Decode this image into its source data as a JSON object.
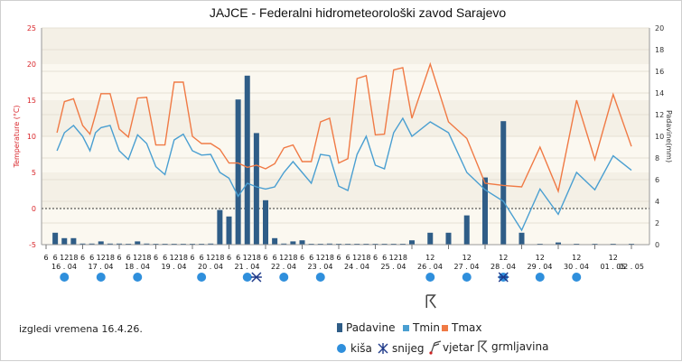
{
  "chart_data": {
    "type": "bar+line",
    "title": "JAJCE - Federalni hidrometeorološki zavod Sarajevo",
    "left_axis": {
      "label": "Temperature (°C)",
      "min": -5,
      "max": 25,
      "ticks": [
        -5,
        0,
        5,
        10,
        15,
        20,
        25
      ],
      "color": "#d9262b"
    },
    "right_axis": {
      "label": "Padavine(mm)",
      "min": 0,
      "max": 20,
      "ticks": [
        0,
        2,
        4,
        6,
        8,
        10,
        12,
        14,
        16,
        18,
        20
      ]
    },
    "days": [
      "16 . 04",
      "17 . 04",
      "18 . 04",
      "19 . 04",
      "20 . 04",
      "21 . 04",
      "22 . 04",
      "23 . 04",
      "24 . 04",
      "25 . 04",
      "26 . 04",
      "27 . 04",
      "28 . 04",
      "29 . 04",
      "30 . 04",
      "01 . 05",
      "02 . 05"
    ],
    "hour_ticks": [
      "6",
      "12",
      "18"
    ],
    "tmax": {
      "name": "Tmax",
      "color": "#f07a45",
      "points": [
        [
          0.3,
          10.5
        ],
        [
          0.5,
          14.8
        ],
        [
          0.75,
          15.2
        ],
        [
          1.0,
          11.5
        ],
        [
          1.2,
          10.3
        ],
        [
          1.35,
          13
        ],
        [
          1.5,
          15.9
        ],
        [
          1.75,
          15.9
        ],
        [
          2.0,
          11
        ],
        [
          2.25,
          9.9
        ],
        [
          2.5,
          15.3
        ],
        [
          2.75,
          15.4
        ],
        [
          3.0,
          8.8
        ],
        [
          3.25,
          8.8
        ],
        [
          3.5,
          17.5
        ],
        [
          3.75,
          17.5
        ],
        [
          4.0,
          10
        ],
        [
          4.25,
          9
        ],
        [
          4.5,
          9
        ],
        [
          4.75,
          8.2
        ],
        [
          5.0,
          6.3
        ],
        [
          5.25,
          6.3
        ],
        [
          5.5,
          5.7
        ],
        [
          5.75,
          6
        ],
        [
          6.0,
          5.5
        ],
        [
          6.25,
          6.2
        ],
        [
          6.5,
          8.4
        ],
        [
          6.75,
          8.8
        ],
        [
          7.0,
          6.5
        ],
        [
          7.25,
          6.5
        ],
        [
          7.5,
          12
        ],
        [
          7.75,
          12.5
        ],
        [
          8.0,
          6.3
        ],
        [
          8.25,
          6.9
        ],
        [
          8.5,
          18
        ],
        [
          8.75,
          18.4
        ],
        [
          9.0,
          10.2
        ],
        [
          9.25,
          10.3
        ],
        [
          9.5,
          19.2
        ],
        [
          9.75,
          19.5
        ],
        [
          10.0,
          12.5
        ],
        [
          10.5,
          20
        ],
        [
          11.0,
          12
        ],
        [
          11.5,
          9.7
        ],
        [
          12.0,
          3.5
        ],
        [
          12.5,
          3.2
        ],
        [
          13.0,
          3
        ],
        [
          13.5,
          8.5
        ],
        [
          14.0,
          2.4
        ],
        [
          14.5,
          15
        ],
        [
          15.0,
          6.8
        ],
        [
          15.5,
          15.8
        ],
        [
          16.0,
          8.6
        ]
      ]
    },
    "tmin": {
      "name": "Tmin",
      "color": "#4a9fd1",
      "points": [
        [
          0.3,
          8
        ],
        [
          0.5,
          10.5
        ],
        [
          0.75,
          11.5
        ],
        [
          1.0,
          10
        ],
        [
          1.2,
          8
        ],
        [
          1.35,
          10.5
        ],
        [
          1.5,
          11.2
        ],
        [
          1.75,
          11.5
        ],
        [
          2.0,
          8
        ],
        [
          2.25,
          6.8
        ],
        [
          2.5,
          10.2
        ],
        [
          2.75,
          9
        ],
        [
          3.0,
          5.8
        ],
        [
          3.25,
          4.7
        ],
        [
          3.5,
          9.5
        ],
        [
          3.75,
          10.3
        ],
        [
          4.0,
          8
        ],
        [
          4.25,
          7.4
        ],
        [
          4.5,
          7.5
        ],
        [
          4.75,
          5
        ],
        [
          5.0,
          4.2
        ],
        [
          5.25,
          1.7
        ],
        [
          5.5,
          3.5
        ],
        [
          5.75,
          3
        ],
        [
          6.0,
          2.7
        ],
        [
          6.25,
          3
        ],
        [
          6.5,
          5
        ],
        [
          6.75,
          6.5
        ],
        [
          7.0,
          5
        ],
        [
          7.25,
          3.5
        ],
        [
          7.5,
          7.5
        ],
        [
          7.75,
          7.3
        ],
        [
          8.0,
          3.1
        ],
        [
          8.25,
          2.5
        ],
        [
          8.5,
          7.5
        ],
        [
          8.75,
          10
        ],
        [
          9.0,
          6
        ],
        [
          9.25,
          5.5
        ],
        [
          9.5,
          10.5
        ],
        [
          9.75,
          12.5
        ],
        [
          10.0,
          10
        ],
        [
          10.5,
          12
        ],
        [
          11.0,
          10.5
        ],
        [
          11.5,
          5
        ],
        [
          12.0,
          2.6
        ],
        [
          12.5,
          1
        ],
        [
          13.0,
          -3
        ],
        [
          13.5,
          2.7
        ],
        [
          14.0,
          -0.8
        ],
        [
          14.5,
          5
        ],
        [
          15.0,
          2.6
        ],
        [
          15.5,
          7.3
        ],
        [
          16.0,
          5.3
        ]
      ]
    },
    "precip": {
      "name": "Padavine",
      "color": "#2f5d87",
      "bars": [
        [
          0.25,
          1.1
        ],
        [
          0.5,
          0.6
        ],
        [
          0.75,
          0.6
        ],
        [
          1.0,
          0.1
        ],
        [
          1.25,
          0.1
        ],
        [
          1.5,
          0.3
        ],
        [
          1.75,
          0.1
        ],
        [
          2.0,
          0.1
        ],
        [
          2.25,
          0.05
        ],
        [
          2.5,
          0.3
        ],
        [
          2.75,
          0.1
        ],
        [
          3.0,
          0.05
        ],
        [
          3.25,
          0.05
        ],
        [
          3.5,
          0.05
        ],
        [
          3.75,
          0.05
        ],
        [
          4.0,
          0.05
        ],
        [
          4.25,
          0.05
        ],
        [
          4.5,
          0.1
        ],
        [
          4.75,
          3.2
        ],
        [
          5.0,
          2.6
        ],
        [
          5.25,
          13.4
        ],
        [
          5.5,
          15.6
        ],
        [
          5.75,
          10.3
        ],
        [
          6.0,
          4.1
        ],
        [
          6.25,
          0.6
        ],
        [
          6.5,
          0.1
        ],
        [
          6.75,
          0.3
        ],
        [
          7.0,
          0.4
        ],
        [
          7.25,
          0.05
        ],
        [
          7.5,
          0.05
        ],
        [
          7.75,
          0.1
        ],
        [
          8.0,
          0.05
        ],
        [
          8.25,
          0.05
        ],
        [
          8.5,
          0.05
        ],
        [
          8.75,
          0.05
        ],
        [
          9.0,
          0.05
        ],
        [
          9.25,
          0.05
        ],
        [
          9.5,
          0.05
        ],
        [
          9.75,
          0.05
        ],
        [
          10.0,
          0.4
        ],
        [
          10.5,
          1.1
        ],
        [
          11.0,
          1.1
        ],
        [
          11.5,
          2.7
        ],
        [
          12.0,
          6.2
        ],
        [
          12.5,
          11.4
        ],
        [
          13.0,
          1.1
        ],
        [
          13.5,
          0.05
        ],
        [
          14.0,
          0.2
        ],
        [
          14.5,
          0.05
        ],
        [
          15.0,
          0.05
        ],
        [
          15.5,
          0.05
        ],
        [
          16.0,
          0.05
        ]
      ]
    },
    "weather_icons": [
      {
        "day": 0.5,
        "type": "kiša"
      },
      {
        "day": 1.5,
        "type": "kiša"
      },
      {
        "day": 2.5,
        "type": "kiša"
      },
      {
        "day": 4.25,
        "type": "kiša"
      },
      {
        "day": 5.5,
        "type": "kiša"
      },
      {
        "day": 5.75,
        "type": "snijeg"
      },
      {
        "day": 6.5,
        "type": "kiša"
      },
      {
        "day": 7.5,
        "type": "kiša"
      },
      {
        "day": 10.5,
        "type": "kiša"
      },
      {
        "day": 10.5,
        "type": "grmljavina"
      },
      {
        "day": 11.5,
        "type": "kiša"
      },
      {
        "day": 12.5,
        "type": "kiša"
      },
      {
        "day": 12.5,
        "type": "snijeg"
      },
      {
        "day": 13.5,
        "type": "kiša"
      },
      {
        "day": 14.5,
        "type": "kiša"
      }
    ],
    "legend": [
      "Padavine",
      "Tmin",
      "Tmax"
    ]
  },
  "footer": {
    "issued": "izgledi vremena 16.4.26.",
    "symbols": {
      "rain": "kiša",
      "snow": "snijeg",
      "wind": "vjetar",
      "thunder": "grmljavina"
    }
  },
  "colors": {
    "rain_icon": "#2f8fdc",
    "snow_icon": "#1f3a8a",
    "thunder_icon": "#444444",
    "wind_icon": "#cc2222"
  }
}
